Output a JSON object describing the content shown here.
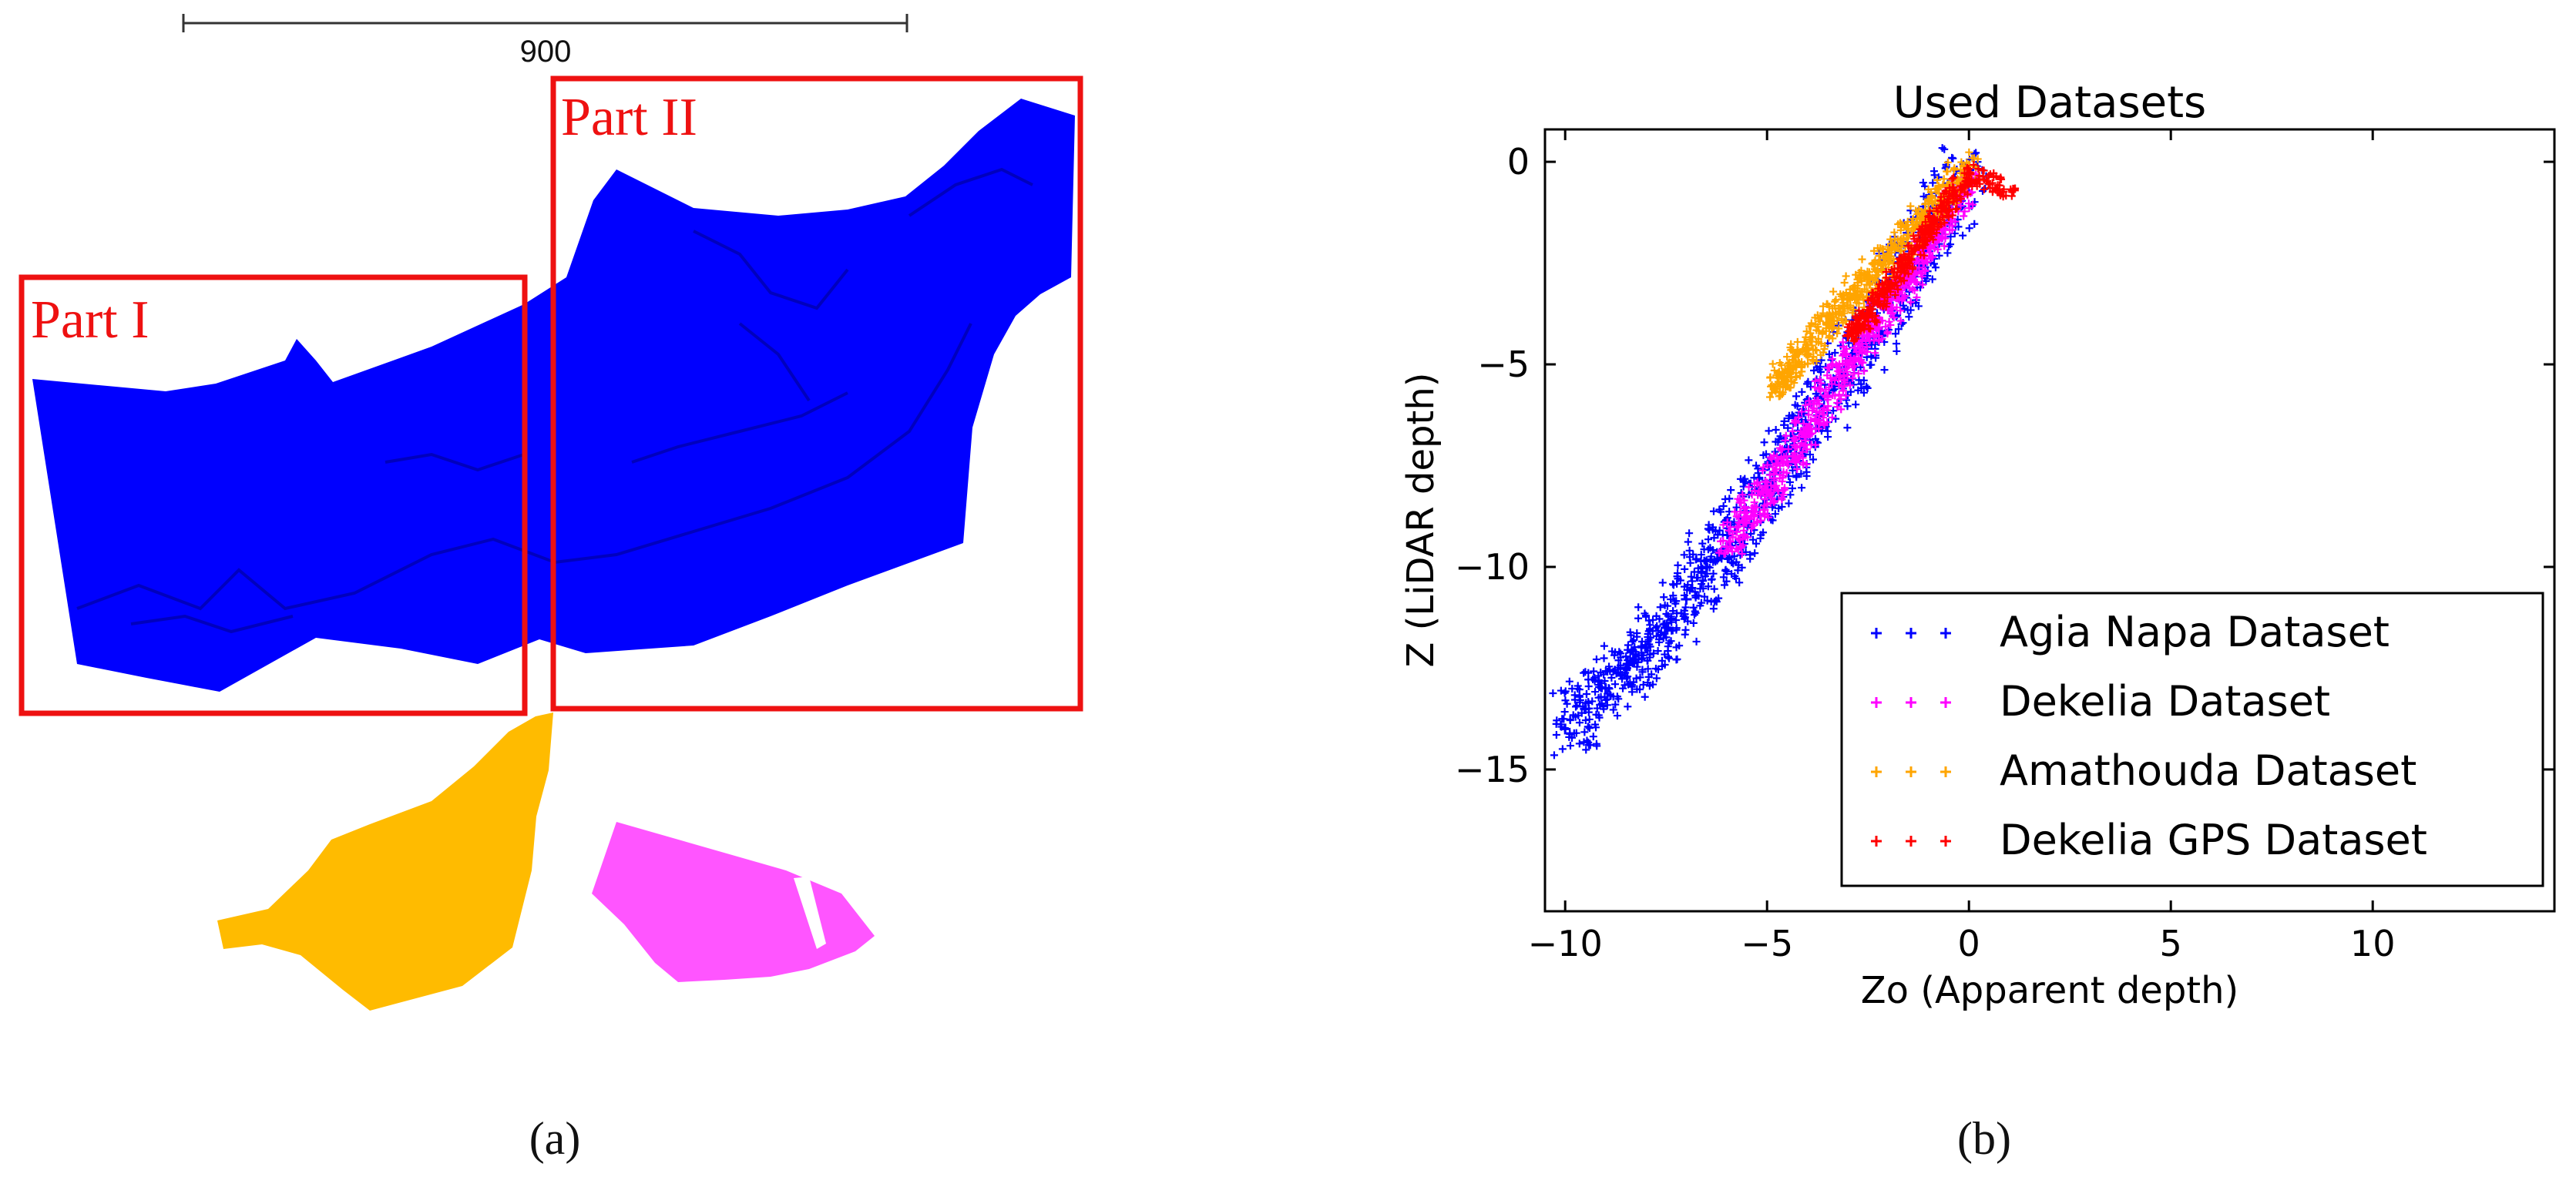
{
  "panel_a": {
    "scale_bar_label": "900",
    "part1_label": "Part I",
    "part2_label": "Part II",
    "caption": "(a)",
    "colors": {
      "agia_napa": "#0000ff",
      "amathouda": "#ffbb00",
      "dekelia": "#ff55ff",
      "box": "#ee1111"
    }
  },
  "panel_b": {
    "caption": "(b)"
  },
  "chart_data": {
    "type": "scatter",
    "title": "Used Datasets",
    "xlabel": "Zo (Apparent depth)",
    "ylabel": "Z (LiDAR depth)",
    "xlim": [
      -10.5,
      14.5
    ],
    "ylim": [
      -18.5,
      0.8
    ],
    "xticks": [
      -10,
      -5,
      0,
      5,
      10
    ],
    "yticks": [
      0,
      -5,
      -10,
      -15
    ],
    "xtick_labels": [
      "−10",
      "−5",
      "0",
      "5",
      "10"
    ],
    "ytick_labels": [
      "0",
      "−5",
      "−10",
      "−15"
    ],
    "grid": false,
    "legend_position": "lower-right",
    "series": [
      {
        "name": "Agia Napa Dataset",
        "color": "#0000ff",
        "marker": "+",
        "x": [
          -10.0,
          -9.5,
          -9.0,
          -8.5,
          -8.0,
          -7.5,
          -7.0,
          -6.5,
          -6.0,
          -5.5,
          -5.0,
          -4.5,
          -4.0,
          -3.5,
          -3.0,
          -2.5,
          -2.0,
          -1.5,
          -1.0,
          -0.5,
          0.0
        ],
        "y": [
          -14.0,
          -13.5,
          -13.0,
          -12.5,
          -12.0,
          -11.5,
          -10.8,
          -10.0,
          -9.5,
          -8.8,
          -8.0,
          -7.3,
          -6.5,
          -5.8,
          -5.0,
          -4.3,
          -3.5,
          -2.7,
          -1.9,
          -1.0,
          -0.2
        ]
      },
      {
        "name": "Dekelia Dataset",
        "color": "#ff00ff",
        "marker": "+",
        "x": [
          -6.0,
          -5.5,
          -5.0,
          -4.5,
          -4.0,
          -3.5,
          -3.0,
          -2.5,
          -2.0,
          -1.5,
          -1.0,
          -0.5,
          0.0
        ],
        "y": [
          -9.5,
          -8.8,
          -8.1,
          -7.4,
          -6.6,
          -5.8,
          -5.0,
          -4.3,
          -3.6,
          -2.9,
          -2.1,
          -1.3,
          -0.5
        ]
      },
      {
        "name": "Amathouda Dataset",
        "color": "#ffa500",
        "marker": "+",
        "x": [
          -4.8,
          -4.5,
          -4.0,
          -3.5,
          -3.0,
          -2.5,
          -2.0,
          -1.5,
          -1.0,
          -0.5,
          0.0
        ],
        "y": [
          -5.6,
          -5.2,
          -4.6,
          -4.0,
          -3.4,
          -2.9,
          -2.4,
          -1.8,
          -1.2,
          -0.6,
          -0.1
        ]
      },
      {
        "name": "Dekelia GPS Dataset",
        "color": "#ff0000",
        "marker": "+",
        "x": [
          -3.0,
          -2.5,
          -2.0,
          -1.5,
          -1.0,
          -0.5,
          0.0,
          1.1
        ],
        "y": [
          -4.3,
          -3.8,
          -3.1,
          -2.4,
          -1.7,
          -1.0,
          -0.3,
          -0.7
        ]
      }
    ]
  }
}
